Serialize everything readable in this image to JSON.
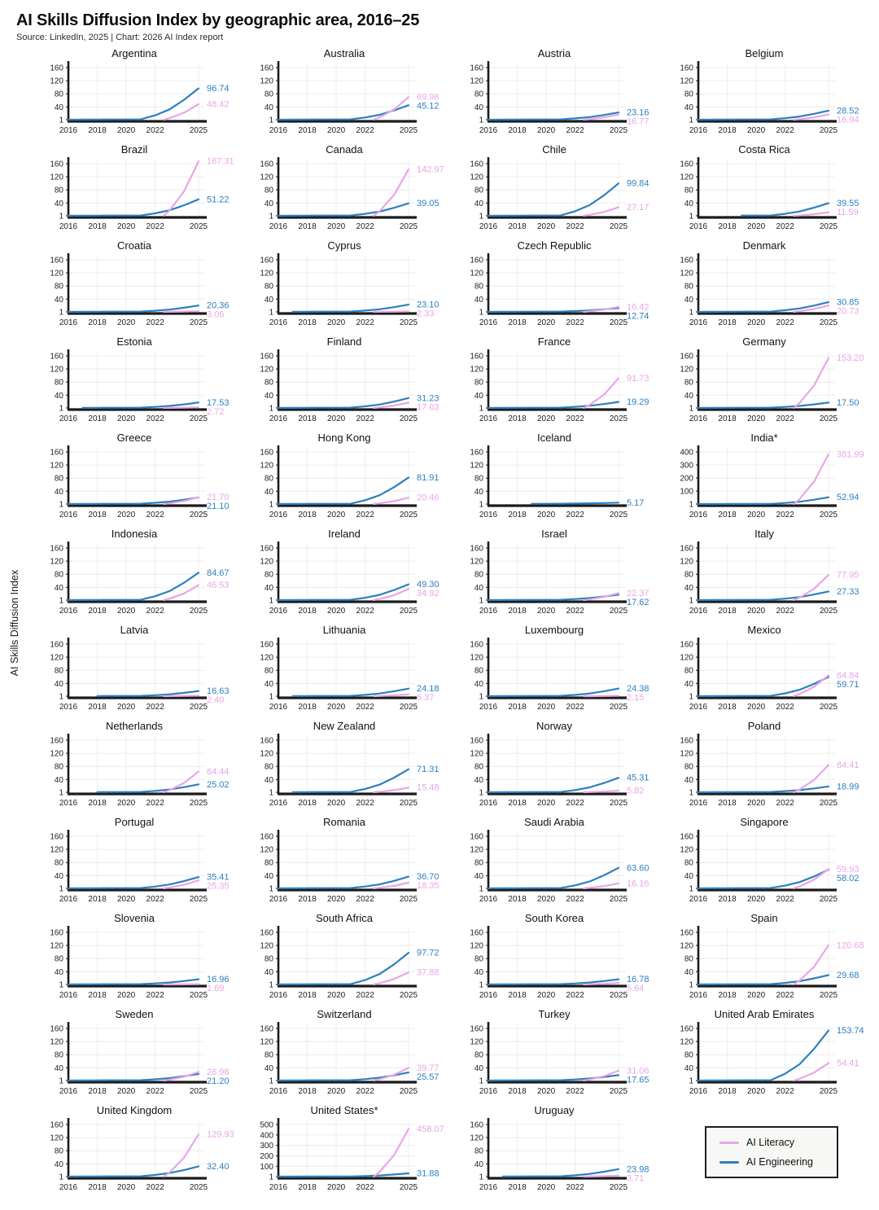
{
  "page": {
    "title": "AI Skills Diffusion Index by geographic area, 2016–25",
    "subtitle": "Source: LinkedIn, 2025 | Chart: 2026 AI Index report",
    "y_axis_label": "AI Skills Diffusion Index"
  },
  "legend": {
    "items": [
      {
        "label": "AI Literacy",
        "color": "#e8a6e6"
      },
      {
        "label": "AI Engineering",
        "color": "#2d7fc0"
      }
    ]
  },
  "colors": {
    "literacy": "#e8a6e6",
    "engineering": "#2d7fc0",
    "axis": "#1b1b1b",
    "grid": "#ececec",
    "tick_text": "#222222"
  },
  "axes_default": {
    "yticks": [
      1,
      40,
      80,
      120,
      160
    ],
    "xticks": [
      2016,
      2018,
      2020,
      2022,
      2025
    ],
    "x_range": [
      2016,
      2025
    ]
  },
  "chart_data": {
    "type": "line",
    "series_labels": [
      "AI Literacy",
      "AI Engineering"
    ],
    "x_range": [
      2016,
      2025
    ],
    "note": "Each mini-chart plots two lines 2016-2025; only the 2025 end values are labeled in the figure. Intermediate points are estimated: AI Engineering rises slowly from ~1 and accelerates after 2022; AI Literacy appears near 1 around late 2022 then spikes to its 2025 value.",
    "curve_model": {
      "engineering_baseline_2016_2021": "1.1 + 0.18*(year-2016)",
      "engineering_anchors": {
        "2022": "2.2+(end-2.2)*0.13",
        "2023": "2.2+(end-2.2)*0.32",
        "2024": "2.2+(end-2.2)*0.63",
        "2025": "end"
      },
      "literacy_anchors": {
        "2022.6": 1,
        "2023": "1+(end-1)*0.10",
        "2024": "1+(end-1)*0.45",
        "2025": "end"
      }
    },
    "countries": [
      {
        "name": "Argentina",
        "engineering": 96.74,
        "literacy": 48.42
      },
      {
        "name": "Australia",
        "engineering": 45.12,
        "literacy": 69.98
      },
      {
        "name": "Austria",
        "engineering": 23.16,
        "literacy": 16.77
      },
      {
        "name": "Belgium",
        "engineering": 28.52,
        "literacy": 16.94
      },
      {
        "name": "Brazil",
        "engineering": 51.22,
        "literacy": 167.31
      },
      {
        "name": "Canada",
        "engineering": 39.05,
        "literacy": 142.97
      },
      {
        "name": "Chile",
        "engineering": 99.84,
        "literacy": 27.17
      },
      {
        "name": "Costa Rica",
        "engineering": 39.55,
        "literacy": 11.59,
        "eng_start": 2019
      },
      {
        "name": "Croatia",
        "engineering": 20.36,
        "literacy": 3.06
      },
      {
        "name": "Cyprus",
        "engineering": 23.1,
        "literacy": 2.33,
        "eng_start": 2017
      },
      {
        "name": "Czech Republic",
        "engineering": 12.74,
        "literacy": 16.42
      },
      {
        "name": "Denmark",
        "engineering": 30.85,
        "literacy": 20.73
      },
      {
        "name": "Estonia",
        "engineering": 17.53,
        "literacy": 2.72,
        "eng_start": 2017
      },
      {
        "name": "Finland",
        "engineering": 31.23,
        "literacy": 17.03
      },
      {
        "name": "France",
        "engineering": 19.29,
        "literacy": 91.73
      },
      {
        "name": "Germany",
        "engineering": 17.5,
        "literacy": 153.2
      },
      {
        "name": "Greece",
        "engineering": 21.1,
        "literacy": 21.7
      },
      {
        "name": "Hong Kong",
        "engineering": 81.91,
        "literacy": 20.46
      },
      {
        "name": "Iceland",
        "engineering": 5.17,
        "literacy": null,
        "eng_start": 2019
      },
      {
        "name": "India*",
        "engineering": 52.94,
        "literacy": 381.99,
        "yticks": [
          1,
          100,
          200,
          300,
          400
        ]
      },
      {
        "name": "Indonesia",
        "engineering": 84.67,
        "literacy": 46.53
      },
      {
        "name": "Ireland",
        "engineering": 49.3,
        "literacy": 34.92
      },
      {
        "name": "Israel",
        "engineering": 17.62,
        "literacy": 22.37
      },
      {
        "name": "Italy",
        "engineering": 27.33,
        "literacy": 77.95
      },
      {
        "name": "Latvia",
        "engineering": 16.63,
        "literacy": 2.4,
        "eng_start": 2018
      },
      {
        "name": "Lithuania",
        "engineering": 24.18,
        "literacy": 6.37,
        "eng_start": 2017
      },
      {
        "name": "Luxembourg",
        "engineering": 24.38,
        "literacy": 2.15
      },
      {
        "name": "Mexico",
        "engineering": 59.71,
        "literacy": 64.84
      },
      {
        "name": "Netherlands",
        "engineering": 25.02,
        "literacy": 64.44,
        "eng_start": 2018
      },
      {
        "name": "New Zealand",
        "engineering": 71.31,
        "literacy": 15.48,
        "eng_start": 2017
      },
      {
        "name": "Norway",
        "engineering": 45.31,
        "literacy": 5.82
      },
      {
        "name": "Poland",
        "engineering": 18.99,
        "literacy": 84.41
      },
      {
        "name": "Portugal",
        "engineering": 35.41,
        "literacy": 25.35
      },
      {
        "name": "Romania",
        "engineering": 36.7,
        "literacy": 18.35
      },
      {
        "name": "Saudi Arabia",
        "engineering": 63.6,
        "literacy": 16.16
      },
      {
        "name": "Singapore",
        "engineering": 58.02,
        "literacy": 59.93
      },
      {
        "name": "Slovenia",
        "engineering": 16.96,
        "literacy": 1.69
      },
      {
        "name": "South Africa",
        "engineering": 97.72,
        "literacy": 37.88
      },
      {
        "name": "South Korea",
        "engineering": 16.78,
        "literacy": 5.64
      },
      {
        "name": "Spain",
        "engineering": 29.68,
        "literacy": 120.68
      },
      {
        "name": "Sweden",
        "engineering": 21.2,
        "literacy": 26.98
      },
      {
        "name": "Switzerland",
        "engineering": 25.57,
        "literacy": 39.77
      },
      {
        "name": "Turkey",
        "engineering": 17.65,
        "literacy": 31.06
      },
      {
        "name": "United Arab Emirates",
        "engineering": 153.74,
        "literacy": 54.41
      },
      {
        "name": "United Kingdom",
        "engineering": 32.4,
        "literacy": 129.93
      },
      {
        "name": "United States*",
        "engineering": 31.88,
        "literacy": 458.07,
        "yticks": [
          1,
          100,
          200,
          300,
          400,
          500
        ]
      },
      {
        "name": "Uruguay",
        "engineering": 23.98,
        "literacy": 3.71,
        "eng_start": 2017
      }
    ]
  }
}
